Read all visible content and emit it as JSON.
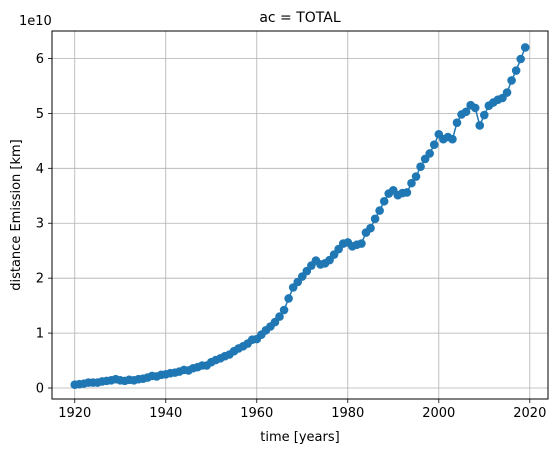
{
  "chart_data": {
    "type": "line",
    "title": "ac = TOTAL",
    "xlabel": "time [years]",
    "ylabel": "distance Emission [km]",
    "y_offset_label": "1e10",
    "xlim": [
      1915,
      2024
    ],
    "ylim": [
      -0.2,
      6.5
    ],
    "y_scale_exponent": 10,
    "x_ticks": [
      1920,
      1940,
      1960,
      1980,
      2000,
      2020
    ],
    "y_ticks": [
      0,
      1,
      2,
      3,
      4,
      5,
      6
    ],
    "grid": true,
    "marker": "circle",
    "color": "#1f77b4",
    "series": [
      {
        "x": [
          1920,
          1921,
          1922,
          1923,
          1924,
          1925,
          1926,
          1927,
          1928,
          1929,
          1930,
          1931,
          1932,
          1933,
          1934,
          1935,
          1936,
          1937,
          1938,
          1939,
          1940,
          1941,
          1942,
          1943,
          1944,
          1945,
          1946,
          1947,
          1948,
          1949,
          1950,
          1951,
          1952,
          1953,
          1954,
          1955,
          1956,
          1957,
          1958,
          1959,
          1960,
          1961,
          1962,
          1963,
          1964,
          1965,
          1966,
          1967,
          1968,
          1969,
          1970,
          1971,
          1972,
          1973,
          1974,
          1975,
          1976,
          1977,
          1978,
          1979,
          1980,
          1981,
          1982,
          1983,
          1984,
          1985,
          1986,
          1987,
          1988,
          1989,
          1990,
          1991,
          1992,
          1993,
          1994,
          1995,
          1996,
          1997,
          1998,
          1999,
          2000,
          2001,
          2002,
          2003,
          2004,
          2005,
          2006,
          2007,
          2008,
          2009,
          2010,
          2011,
          2012,
          2013,
          2014,
          2015,
          2016,
          2017,
          2018,
          2019
        ],
        "y": [
          0.06,
          0.07,
          0.08,
          0.1,
          0.1,
          0.1,
          0.12,
          0.13,
          0.14,
          0.16,
          0.14,
          0.13,
          0.15,
          0.14,
          0.16,
          0.17,
          0.19,
          0.22,
          0.21,
          0.24,
          0.25,
          0.27,
          0.28,
          0.3,
          0.33,
          0.32,
          0.36,
          0.38,
          0.41,
          0.41,
          0.47,
          0.51,
          0.54,
          0.58,
          0.61,
          0.67,
          0.72,
          0.76,
          0.81,
          0.88,
          0.89,
          0.97,
          1.05,
          1.12,
          1.2,
          1.3,
          1.42,
          1.63,
          1.83,
          1.93,
          2.03,
          2.13,
          2.23,
          2.32,
          2.25,
          2.27,
          2.33,
          2.43,
          2.53,
          2.63,
          2.65,
          2.58,
          2.61,
          2.63,
          2.83,
          2.91,
          3.08,
          3.23,
          3.4,
          3.54,
          3.6,
          3.51,
          3.55,
          3.56,
          3.73,
          3.85,
          4.03,
          4.17,
          4.27,
          4.43,
          4.62,
          4.53,
          4.57,
          4.53,
          4.83,
          4.98,
          5.03,
          5.15,
          5.1,
          4.78,
          4.97,
          5.14,
          5.2,
          5.25,
          5.28,
          5.38,
          5.6,
          5.78,
          5.99,
          6.2
        ]
      }
    ]
  }
}
